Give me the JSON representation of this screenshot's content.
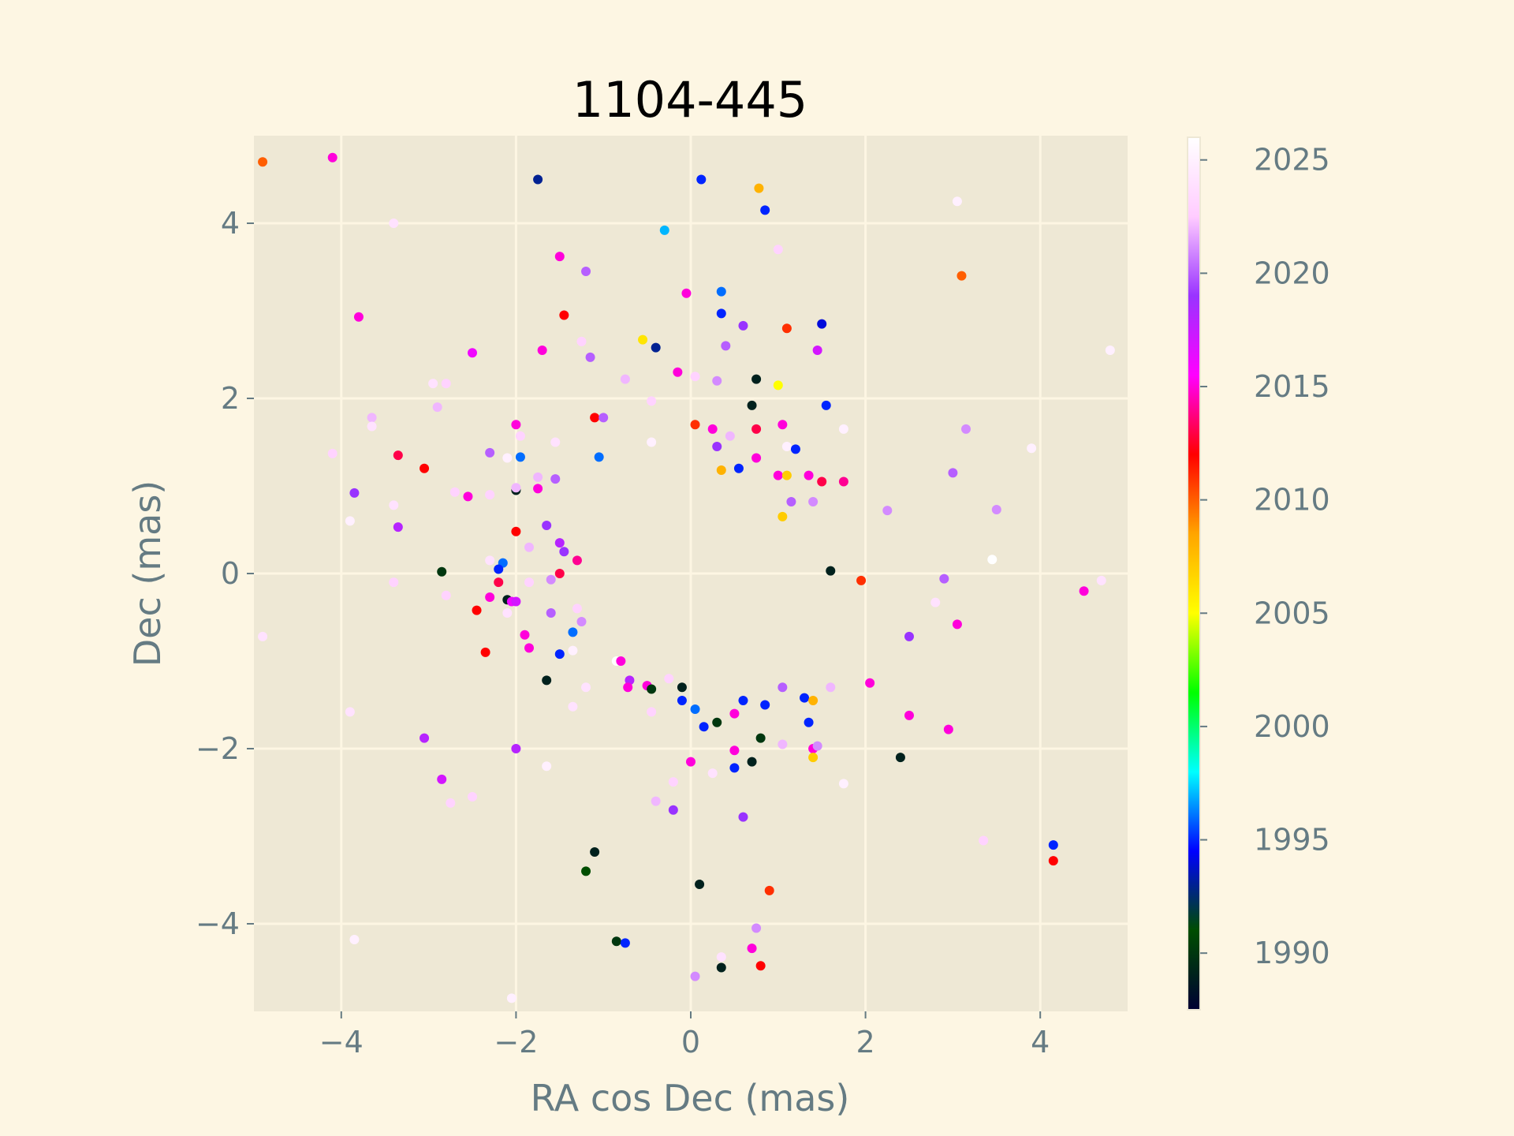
{
  "chart_data": {
    "type": "scatter",
    "title": "1104-445",
    "xlabel": "RA cos Dec (mas)",
    "ylabel": "Dec (mas)",
    "xlim": [
      -5,
      5
    ],
    "ylim": [
      -5,
      5
    ],
    "xticks": [
      -4,
      -2,
      0,
      2,
      4
    ],
    "yticks": [
      -4,
      -2,
      0,
      2,
      4
    ],
    "xtick_labels": [
      "−4",
      "−2",
      "0",
      "2",
      "4"
    ],
    "ytick_labels": [
      "−4",
      "−2",
      "0",
      "2",
      "4"
    ],
    "grid": true,
    "colorbar": {
      "label": "",
      "range": [
        1987.5,
        2026
      ],
      "ticks": [
        1990,
        1995,
        2000,
        2005,
        2010,
        2015,
        2020,
        2025
      ],
      "colors": [
        "#000033",
        "#004d00",
        "#0000ff",
        "#00ffff",
        "#00ff00",
        "#ffff00",
        "#ffa500",
        "#ff0000",
        "#ff00ff",
        "#9933ff",
        "#ffccff",
        "#ffffff"
      ]
    },
    "colors": {
      "background": "#fdf6e3",
      "axes_background": "#eee8d5",
      "grid": "#fdf6e3",
      "text": "#657b83"
    },
    "points": [
      {
        "x": -4.9,
        "y": 4.7,
        "year": 2010
      },
      {
        "x": -4.1,
        "y": 4.75,
        "year": 2015
      },
      {
        "x": -1.75,
        "y": 4.5,
        "year": 1993
      },
      {
        "x": 0.12,
        "y": 4.5,
        "year": 1995
      },
      {
        "x": 0.78,
        "y": 4.4,
        "year": 2008
      },
      {
        "x": 0.85,
        "y": 4.15,
        "year": 1995
      },
      {
        "x": 3.05,
        "y": 4.25,
        "year": 2025
      },
      {
        "x": -3.4,
        "y": 4.0,
        "year": 2024
      },
      {
        "x": -0.3,
        "y": 3.92,
        "year": 1997
      },
      {
        "x": 1.0,
        "y": 3.7,
        "year": 2023
      },
      {
        "x": -1.5,
        "y": 3.62,
        "year": 2015
      },
      {
        "x": -1.2,
        "y": 3.45,
        "year": 2020
      },
      {
        "x": 3.1,
        "y": 3.4,
        "year": 2010
      },
      {
        "x": -0.05,
        "y": 3.2,
        "year": 2015
      },
      {
        "x": 0.35,
        "y": 3.22,
        "year": 1996
      },
      {
        "x": -1.45,
        "y": 2.95,
        "year": 2012
      },
      {
        "x": -3.8,
        "y": 2.93,
        "year": 2015
      },
      {
        "x": 0.35,
        "y": 2.97,
        "year": 1995
      },
      {
        "x": 0.6,
        "y": 2.83,
        "year": 2019
      },
      {
        "x": 1.1,
        "y": 2.8,
        "year": 2011
      },
      {
        "x": 1.5,
        "y": 2.85,
        "year": 1994
      },
      {
        "x": -1.25,
        "y": 2.65,
        "year": 2023
      },
      {
        "x": -0.55,
        "y": 2.67,
        "year": 2006
      },
      {
        "x": -0.4,
        "y": 2.58,
        "year": 1993
      },
      {
        "x": 0.4,
        "y": 2.6,
        "year": 2020
      },
      {
        "x": -2.5,
        "y": 2.52,
        "year": 2016
      },
      {
        "x": -1.7,
        "y": 2.55,
        "year": 2015
      },
      {
        "x": 1.45,
        "y": 2.55,
        "year": 2017
      },
      {
        "x": 4.8,
        "y": 2.55,
        "year": 2025
      },
      {
        "x": -1.15,
        "y": 2.47,
        "year": 2020
      },
      {
        "x": -0.15,
        "y": 2.3,
        "year": 2015
      },
      {
        "x": 0.05,
        "y": 2.25,
        "year": 2023
      },
      {
        "x": 0.75,
        "y": 2.22,
        "year": 1989
      },
      {
        "x": 0.3,
        "y": 2.2,
        "year": 2021
      },
      {
        "x": -0.75,
        "y": 2.22,
        "year": 2022
      },
      {
        "x": 1.0,
        "y": 2.15,
        "year": 2005
      },
      {
        "x": -2.95,
        "y": 2.17,
        "year": 2024
      },
      {
        "x": -2.8,
        "y": 2.17,
        "year": 2023
      },
      {
        "x": -0.45,
        "y": 1.97,
        "year": 2023
      },
      {
        "x": 1.55,
        "y": 1.92,
        "year": 1995
      },
      {
        "x": -2.9,
        "y": 1.9,
        "year": 2022
      },
      {
        "x": 0.7,
        "y": 1.92,
        "year": 1989
      },
      {
        "x": -3.65,
        "y": 1.78,
        "year": 2022
      },
      {
        "x": -1.1,
        "y": 1.78,
        "year": 2012
      },
      {
        "x": -1.0,
        "y": 1.78,
        "year": 2020
      },
      {
        "x": -3.65,
        "y": 1.68,
        "year": 2024
      },
      {
        "x": -2.0,
        "y": 1.7,
        "year": 2015
      },
      {
        "x": 0.05,
        "y": 1.7,
        "year": 2011
      },
      {
        "x": 0.25,
        "y": 1.65,
        "year": 2015
      },
      {
        "x": 0.75,
        "y": 1.65,
        "year": 2013
      },
      {
        "x": 1.05,
        "y": 1.7,
        "year": 2015
      },
      {
        "x": 1.75,
        "y": 1.65,
        "year": 2025
      },
      {
        "x": 3.15,
        "y": 1.65,
        "year": 2021
      },
      {
        "x": -1.95,
        "y": 1.57,
        "year": 2023
      },
      {
        "x": 0.45,
        "y": 1.57,
        "year": 2022
      },
      {
        "x": -1.55,
        "y": 1.5,
        "year": 2024
      },
      {
        "x": 0.3,
        "y": 1.45,
        "year": 2019
      },
      {
        "x": 1.1,
        "y": 1.45,
        "year": 2025
      },
      {
        "x": 1.2,
        "y": 1.42,
        "year": 1995
      },
      {
        "x": -0.45,
        "y": 1.5,
        "year": 2025
      },
      {
        "x": 3.9,
        "y": 1.43,
        "year": 2025
      },
      {
        "x": -4.1,
        "y": 1.37,
        "year": 2023
      },
      {
        "x": -2.3,
        "y": 1.38,
        "year": 2020
      },
      {
        "x": -1.95,
        "y": 1.33,
        "year": 1996
      },
      {
        "x": -1.05,
        "y": 1.33,
        "year": 1996
      },
      {
        "x": -3.35,
        "y": 1.35,
        "year": 2013
      },
      {
        "x": -2.1,
        "y": 1.32,
        "year": 2025
      },
      {
        "x": 0.75,
        "y": 1.32,
        "year": 2015
      },
      {
        "x": -3.05,
        "y": 1.2,
        "year": 2012
      },
      {
        "x": 0.35,
        "y": 1.18,
        "year": 2008
      },
      {
        "x": 0.55,
        "y": 1.2,
        "year": 1995
      },
      {
        "x": 1.0,
        "y": 1.12,
        "year": 2015
      },
      {
        "x": 1.1,
        "y": 1.12,
        "year": 2007
      },
      {
        "x": 1.35,
        "y": 1.12,
        "year": 2015
      },
      {
        "x": 1.5,
        "y": 1.05,
        "year": 2013
      },
      {
        "x": 1.75,
        "y": 1.05,
        "year": 2014
      },
      {
        "x": 3.0,
        "y": 1.15,
        "year": 2020
      },
      {
        "x": -1.55,
        "y": 1.08,
        "year": 2020
      },
      {
        "x": -1.75,
        "y": 1.1,
        "year": 2022
      },
      {
        "x": -2.55,
        "y": 0.88,
        "year": 2015
      },
      {
        "x": -2.3,
        "y": 0.9,
        "year": 2023
      },
      {
        "x": -2.7,
        "y": 0.93,
        "year": 2023
      },
      {
        "x": -3.85,
        "y": 0.92,
        "year": 2019
      },
      {
        "x": -2.0,
        "y": 0.95,
        "year": 1989
      },
      {
        "x": -2.0,
        "y": 0.98,
        "year": 2022
      },
      {
        "x": -1.75,
        "y": 0.97,
        "year": 2015
      },
      {
        "x": 1.15,
        "y": 0.82,
        "year": 2020
      },
      {
        "x": 1.4,
        "y": 0.82,
        "year": 2021
      },
      {
        "x": 2.25,
        "y": 0.72,
        "year": 2021
      },
      {
        "x": 3.5,
        "y": 0.73,
        "year": 2021
      },
      {
        "x": -3.4,
        "y": 0.78,
        "year": 2024
      },
      {
        "x": 1.05,
        "y": 0.65,
        "year": 2007
      },
      {
        "x": -3.9,
        "y": 0.6,
        "year": 2025
      },
      {
        "x": -3.35,
        "y": 0.53,
        "year": 2018
      },
      {
        "x": -1.65,
        "y": 0.55,
        "year": 2019
      },
      {
        "x": -2.0,
        "y": 0.48,
        "year": 2012
      },
      {
        "x": -1.5,
        "y": 0.35,
        "year": 2018
      },
      {
        "x": -1.85,
        "y": 0.3,
        "year": 2022
      },
      {
        "x": -1.45,
        "y": 0.25,
        "year": 2019
      },
      {
        "x": -2.3,
        "y": 0.15,
        "year": 2024
      },
      {
        "x": -2.15,
        "y": 0.12,
        "year": 1996
      },
      {
        "x": -2.2,
        "y": 0.05,
        "year": 1995
      },
      {
        "x": -1.3,
        "y": 0.15,
        "year": 2014
      },
      {
        "x": -1.5,
        "y": 0.0,
        "year": 2013
      },
      {
        "x": -2.85,
        "y": 0.02,
        "year": 1990
      },
      {
        "x": -2.2,
        "y": -0.1,
        "year": 2013
      },
      {
        "x": -1.85,
        "y": -0.1,
        "year": 2023
      },
      {
        "x": -1.6,
        "y": -0.07,
        "year": 2021
      },
      {
        "x": -3.4,
        "y": -0.1,
        "year": 2023
      },
      {
        "x": 1.6,
        "y": 0.03,
        "year": 1989
      },
      {
        "x": 1.95,
        "y": -0.08,
        "year": 2011
      },
      {
        "x": 2.9,
        "y": -0.06,
        "year": 2020
      },
      {
        "x": 3.45,
        "y": 0.16,
        "year": 2026
      },
      {
        "x": 4.5,
        "y": -0.2,
        "year": 2015
      },
      {
        "x": 4.7,
        "y": -0.08,
        "year": 2024
      },
      {
        "x": -2.8,
        "y": -0.25,
        "year": 2023
      },
      {
        "x": -2.3,
        "y": -0.27,
        "year": 2015
      },
      {
        "x": -2.1,
        "y": -0.3,
        "year": 1989
      },
      {
        "x": -2.05,
        "y": -0.32,
        "year": 2016
      },
      {
        "x": -2.0,
        "y": -0.32,
        "year": 2017
      },
      {
        "x": -2.45,
        "y": -0.42,
        "year": 2012
      },
      {
        "x": -2.1,
        "y": -0.45,
        "year": 2024
      },
      {
        "x": -1.6,
        "y": -0.45,
        "year": 2020
      },
      {
        "x": -1.3,
        "y": -0.4,
        "year": 2023
      },
      {
        "x": -1.25,
        "y": -0.55,
        "year": 2021
      },
      {
        "x": -1.35,
        "y": -0.67,
        "year": 1996
      },
      {
        "x": -1.9,
        "y": -0.7,
        "year": 2015
      },
      {
        "x": 2.5,
        "y": -0.72,
        "year": 2019
      },
      {
        "x": 3.05,
        "y": -0.58,
        "year": 2015
      },
      {
        "x": 2.8,
        "y": -0.33,
        "year": 2024
      },
      {
        "x": -4.9,
        "y": -0.72,
        "year": 2024
      },
      {
        "x": -1.85,
        "y": -0.85,
        "year": 2015
      },
      {
        "x": -2.35,
        "y": -0.9,
        "year": 2012
      },
      {
        "x": -1.5,
        "y": -0.92,
        "year": 1995
      },
      {
        "x": -1.35,
        "y": -0.88,
        "year": 2025
      },
      {
        "x": -1.65,
        "y": -1.22,
        "year": 1989
      },
      {
        "x": -1.2,
        "y": -1.3,
        "year": 2024
      },
      {
        "x": -1.35,
        "y": -1.52,
        "year": 2024
      },
      {
        "x": -0.85,
        "y": -1.0,
        "year": 2026
      },
      {
        "x": -0.8,
        "y": -1.0,
        "year": 2015
      },
      {
        "x": -0.7,
        "y": -1.22,
        "year": 2018
      },
      {
        "x": -0.72,
        "y": -1.3,
        "year": 2015
      },
      {
        "x": -0.5,
        "y": -1.28,
        "year": 2015
      },
      {
        "x": -0.45,
        "y": -1.32,
        "year": 1990
      },
      {
        "x": -0.1,
        "y": -1.3,
        "year": 1989
      },
      {
        "x": -0.25,
        "y": -1.2,
        "year": 2023
      },
      {
        "x": -0.1,
        "y": -1.45,
        "year": 1995
      },
      {
        "x": 0.05,
        "y": -1.55,
        "year": 1996
      },
      {
        "x": -0.45,
        "y": -1.58,
        "year": 2023
      },
      {
        "x": 0.15,
        "y": -1.75,
        "year": 1995
      },
      {
        "x": 0.3,
        "y": -1.7,
        "year": 1990
      },
      {
        "x": 0.5,
        "y": -1.6,
        "year": 2015
      },
      {
        "x": 0.6,
        "y": -1.45,
        "year": 1995
      },
      {
        "x": 0.85,
        "y": -1.5,
        "year": 1995
      },
      {
        "x": 1.3,
        "y": -1.42,
        "year": 1995
      },
      {
        "x": 1.4,
        "y": -1.45,
        "year": 2008
      },
      {
        "x": 1.35,
        "y": -1.7,
        "year": 1995
      },
      {
        "x": 1.05,
        "y": -1.3,
        "year": 2020
      },
      {
        "x": 1.6,
        "y": -1.3,
        "year": 2022
      },
      {
        "x": 2.05,
        "y": -1.25,
        "year": 2015
      },
      {
        "x": 2.5,
        "y": -1.62,
        "year": 2015
      },
      {
        "x": 2.95,
        "y": -1.78,
        "year": 2015
      },
      {
        "x": 0.8,
        "y": -1.88,
        "year": 1990
      },
      {
        "x": 1.05,
        "y": -1.95,
        "year": 2022
      },
      {
        "x": 1.4,
        "y": -2.0,
        "year": 2015
      },
      {
        "x": 1.45,
        "y": -1.97,
        "year": 2021
      },
      {
        "x": 1.4,
        "y": -2.1,
        "year": 2007
      },
      {
        "x": 0.5,
        "y": -2.02,
        "year": 2015
      },
      {
        "x": 0.5,
        "y": -2.22,
        "year": 1995
      },
      {
        "x": 0.7,
        "y": -2.15,
        "year": 1989
      },
      {
        "x": 0.0,
        "y": -2.15,
        "year": 2015
      },
      {
        "x": 0.25,
        "y": -2.28,
        "year": 2024
      },
      {
        "x": 2.4,
        "y": -2.1,
        "year": 1989
      },
      {
        "x": -3.05,
        "y": -1.88,
        "year": 2018
      },
      {
        "x": -2.0,
        "y": -2.0,
        "year": 2018
      },
      {
        "x": -1.65,
        "y": -2.2,
        "year": 2025
      },
      {
        "x": -2.85,
        "y": -2.35,
        "year": 2017
      },
      {
        "x": -2.5,
        "y": -2.55,
        "year": 2023
      },
      {
        "x": -2.75,
        "y": -2.62,
        "year": 2023
      },
      {
        "x": -3.9,
        "y": -1.58,
        "year": 2024
      },
      {
        "x": -0.2,
        "y": -2.38,
        "year": 2023
      },
      {
        "x": -0.4,
        "y": -2.6,
        "year": 2022
      },
      {
        "x": -0.2,
        "y": -2.7,
        "year": 2019
      },
      {
        "x": 0.6,
        "y": -2.78,
        "year": 2019
      },
      {
        "x": 1.75,
        "y": -2.4,
        "year": 2025
      },
      {
        "x": 3.35,
        "y": -3.05,
        "year": 2023
      },
      {
        "x": 4.15,
        "y": -3.1,
        "year": 1995
      },
      {
        "x": 4.15,
        "y": -3.28,
        "year": 2012
      },
      {
        "x": -1.1,
        "y": -3.18,
        "year": 1989
      },
      {
        "x": -1.2,
        "y": -3.4,
        "year": 1991
      },
      {
        "x": 0.1,
        "y": -3.55,
        "year": 1989
      },
      {
        "x": 0.9,
        "y": -3.62,
        "year": 2011
      },
      {
        "x": -0.85,
        "y": -4.2,
        "year": 1990
      },
      {
        "x": -0.75,
        "y": -4.22,
        "year": 1995
      },
      {
        "x": 0.75,
        "y": -4.05,
        "year": 2021
      },
      {
        "x": 0.7,
        "y": -4.28,
        "year": 2015
      },
      {
        "x": 0.35,
        "y": -4.38,
        "year": 2024
      },
      {
        "x": 0.35,
        "y": -4.5,
        "year": 1989
      },
      {
        "x": 0.8,
        "y": -4.48,
        "year": 2012
      },
      {
        "x": 0.05,
        "y": -4.6,
        "year": 2021
      },
      {
        "x": -3.85,
        "y": -4.18,
        "year": 2025
      },
      {
        "x": -2.05,
        "y": -4.85,
        "year": 2025
      }
    ]
  }
}
